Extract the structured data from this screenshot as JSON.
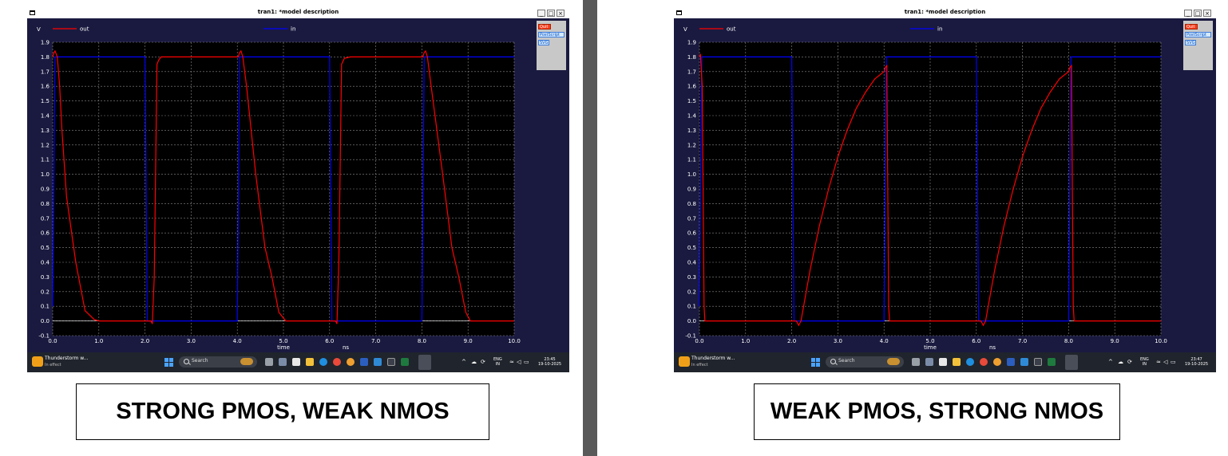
{
  "panels": [
    {
      "window_title": "tran1: *model description",
      "window_buttons": [
        "_",
        "□",
        "×"
      ],
      "sidebar_buttons": [
        "Quit",
        "PostScript",
        "SVG"
      ],
      "chart_data": {
        "type": "line",
        "ylabel": "V",
        "xlabel": "time",
        "xunit": "ns",
        "xlim": [
          0,
          10
        ],
        "ylim": [
          -0.1,
          1.9
        ],
        "xticks": [
          "0.0",
          "1.0",
          "2.0",
          "3.0",
          "4.0",
          "5.0",
          "6.0",
          "7.0",
          "8.0",
          "9.0",
          "10.0"
        ],
        "yticks": [
          "-0.1",
          "0.0",
          "0.1",
          "0.2",
          "0.3",
          "0.4",
          "0.5",
          "0.6",
          "0.7",
          "0.8",
          "0.9",
          "1.0",
          "1.1",
          "1.2",
          "1.3",
          "1.4",
          "1.5",
          "1.6",
          "1.7",
          "1.8",
          "1.9"
        ],
        "grid": true,
        "series": [
          {
            "name": "out",
            "color": "#ff0000",
            "x": [
              0,
              0.03,
              0.05,
              0.1,
              0.15,
              0.2,
              0.3,
              0.5,
              0.7,
              0.9,
              1.0,
              2.13,
              2.16,
              2.2,
              2.26,
              2.3,
              2.35,
              2.45,
              4.02,
              4.05,
              4.08,
              4.12,
              4.2,
              4.4,
              4.6,
              4.75,
              4.9,
              5.05,
              6.13,
              6.16,
              6.2,
              6.26,
              6.32,
              6.45,
              8.02,
              8.05,
              8.08,
              8.12,
              8.2,
              8.45,
              8.65,
              8.8,
              8.95,
              9.05,
              10.0
            ],
            "y": [
              1.8,
              1.83,
              1.84,
              1.8,
              1.6,
              1.3,
              0.85,
              0.4,
              0.07,
              0.01,
              0.0,
              0.0,
              -0.02,
              0.3,
              1.75,
              1.78,
              1.8,
              1.8,
              1.8,
              1.83,
              1.84,
              1.8,
              1.6,
              1.0,
              0.5,
              0.3,
              0.06,
              0.0,
              0.0,
              -0.02,
              0.4,
              1.75,
              1.79,
              1.8,
              1.8,
              1.83,
              1.84,
              1.8,
              1.6,
              1.0,
              0.5,
              0.3,
              0.06,
              0.0,
              0.0
            ]
          },
          {
            "name": "in",
            "color": "#0000ff",
            "x": [
              0,
              0.05,
              0.1,
              2.0,
              2.05,
              2.1,
              4.0,
              4.05,
              4.1,
              6.0,
              6.05,
              6.1,
              8.0,
              8.05,
              8.1,
              10.0
            ],
            "y": [
              0.1,
              1.8,
              1.8,
              1.8,
              0.0,
              0.0,
              0.0,
              1.8,
              1.8,
              1.8,
              0.0,
              0.0,
              0.0,
              1.8,
              1.8,
              1.8
            ]
          }
        ]
      },
      "taskbar": {
        "app_title": "Thunderstorm w...",
        "app_subtitle": "In effect",
        "search_label": "Search",
        "lang": "ENG",
        "region": "IN",
        "time": "23:45",
        "date": "19-10-2025"
      },
      "caption": "STRONG PMOS, WEAK NMOS"
    },
    {
      "window_title": "tran1: *model description",
      "window_buttons": [
        "_",
        "□",
        "×"
      ],
      "sidebar_buttons": [
        "Quit",
        "PostScript",
        "SVG"
      ],
      "chart_data": {
        "type": "line",
        "ylabel": "V",
        "xlabel": "time",
        "xunit": "ns",
        "xlim": [
          0,
          10
        ],
        "ylim": [
          -0.1,
          1.9
        ],
        "xticks": [
          "0.0",
          "1.0",
          "2.0",
          "3.0",
          "4.0",
          "5.0",
          "6.0",
          "7.0",
          "8.0",
          "9.0",
          "10.0"
        ],
        "yticks": [
          "-0.1",
          "0.0",
          "0.1",
          "0.2",
          "0.3",
          "0.4",
          "0.5",
          "0.6",
          "0.7",
          "0.8",
          "0.9",
          "1.0",
          "1.1",
          "1.2",
          "1.3",
          "1.4",
          "1.5",
          "1.6",
          "1.7",
          "1.8",
          "1.9"
        ],
        "grid": true,
        "series": [
          {
            "name": "out",
            "color": "#ff0000",
            "x": [
              0,
              0.02,
              0.06,
              0.1,
              0.12,
              2.1,
              2.15,
              2.2,
              2.4,
              2.6,
              2.8,
              3.0,
              3.2,
              3.4,
              3.6,
              3.8,
              4.0,
              4.03,
              4.06,
              4.1,
              4.12,
              6.1,
              6.15,
              6.2,
              6.4,
              6.6,
              6.8,
              7.0,
              7.2,
              7.4,
              7.6,
              7.8,
              8.0,
              8.03,
              8.06,
              8.1,
              8.12,
              10.0
            ],
            "y": [
              1.8,
              1.82,
              1.6,
              0.1,
              0.0,
              0.0,
              -0.03,
              0.0,
              0.35,
              0.65,
              0.9,
              1.12,
              1.3,
              1.45,
              1.56,
              1.65,
              1.7,
              1.73,
              1.74,
              0.1,
              0.0,
              0.0,
              -0.03,
              0.0,
              0.35,
              0.65,
              0.9,
              1.12,
              1.3,
              1.45,
              1.56,
              1.65,
              1.7,
              1.73,
              1.74,
              0.1,
              0.0,
              0.0
            ]
          },
          {
            "name": "in",
            "color": "#0000ff",
            "x": [
              0,
              0.05,
              0.1,
              2.0,
              2.05,
              2.1,
              4.0,
              4.05,
              4.1,
              6.0,
              6.05,
              6.1,
              8.0,
              8.05,
              8.1,
              10.0
            ],
            "y": [
              0.1,
              1.8,
              1.8,
              1.8,
              0.0,
              0.0,
              0.0,
              1.8,
              1.8,
              1.8,
              0.0,
              0.0,
              0.0,
              1.8,
              1.8,
              1.8
            ]
          }
        ]
      },
      "taskbar": {
        "app_title": "Thunderstorm w...",
        "app_subtitle": "In effect",
        "search_label": "Search",
        "lang": "ENG",
        "region": "IN",
        "time": "23:47",
        "date": "19-10-2025"
      },
      "caption": "WEAK PMOS, STRONG NMOS"
    }
  ]
}
